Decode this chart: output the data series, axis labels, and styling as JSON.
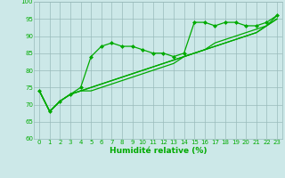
{
  "xlabel": "Humidité relative (%)",
  "xlim": [
    -0.5,
    23.5
  ],
  "ylim": [
    60,
    100
  ],
  "xticks": [
    0,
    1,
    2,
    3,
    4,
    5,
    6,
    7,
    8,
    9,
    10,
    11,
    12,
    13,
    14,
    15,
    16,
    17,
    18,
    19,
    20,
    21,
    22,
    23
  ],
  "yticks": [
    60,
    65,
    70,
    75,
    80,
    85,
    90,
    95,
    100
  ],
  "background_color": "#cce8e8",
  "grid_color": "#99bbbb",
  "line_color": "#00aa00",
  "series_with_markers": [
    74,
    68,
    71,
    73,
    75,
    84,
    87,
    88,
    87,
    87,
    86,
    85,
    85,
    84,
    85,
    94,
    94,
    93,
    94,
    94,
    93,
    93,
    94,
    96
  ],
  "series_linear1": [
    74,
    68,
    71,
    73,
    74,
    74,
    75,
    76,
    77,
    78,
    79,
    80,
    81,
    82,
    84,
    85,
    86,
    87,
    88,
    89,
    90,
    91,
    93,
    95
  ],
  "series_linear2": [
    74,
    68,
    71,
    73,
    74,
    75,
    76,
    77,
    78,
    79,
    80,
    81,
    82,
    83,
    84,
    85,
    86,
    87,
    88,
    89,
    90,
    91,
    93,
    95
  ],
  "series_linear3": [
    74,
    68,
    71,
    73,
    74,
    75,
    76,
    77,
    78,
    79,
    80,
    81,
    82,
    83,
    84,
    85,
    86,
    88,
    89,
    90,
    91,
    92,
    93,
    96
  ],
  "marker": "D",
  "markersize": 2.0,
  "linewidth": 0.9,
  "tick_fontsize": 5.0,
  "xlabel_fontsize": 6.5,
  "fig_width": 3.2,
  "fig_height": 2.0,
  "dpi": 100
}
